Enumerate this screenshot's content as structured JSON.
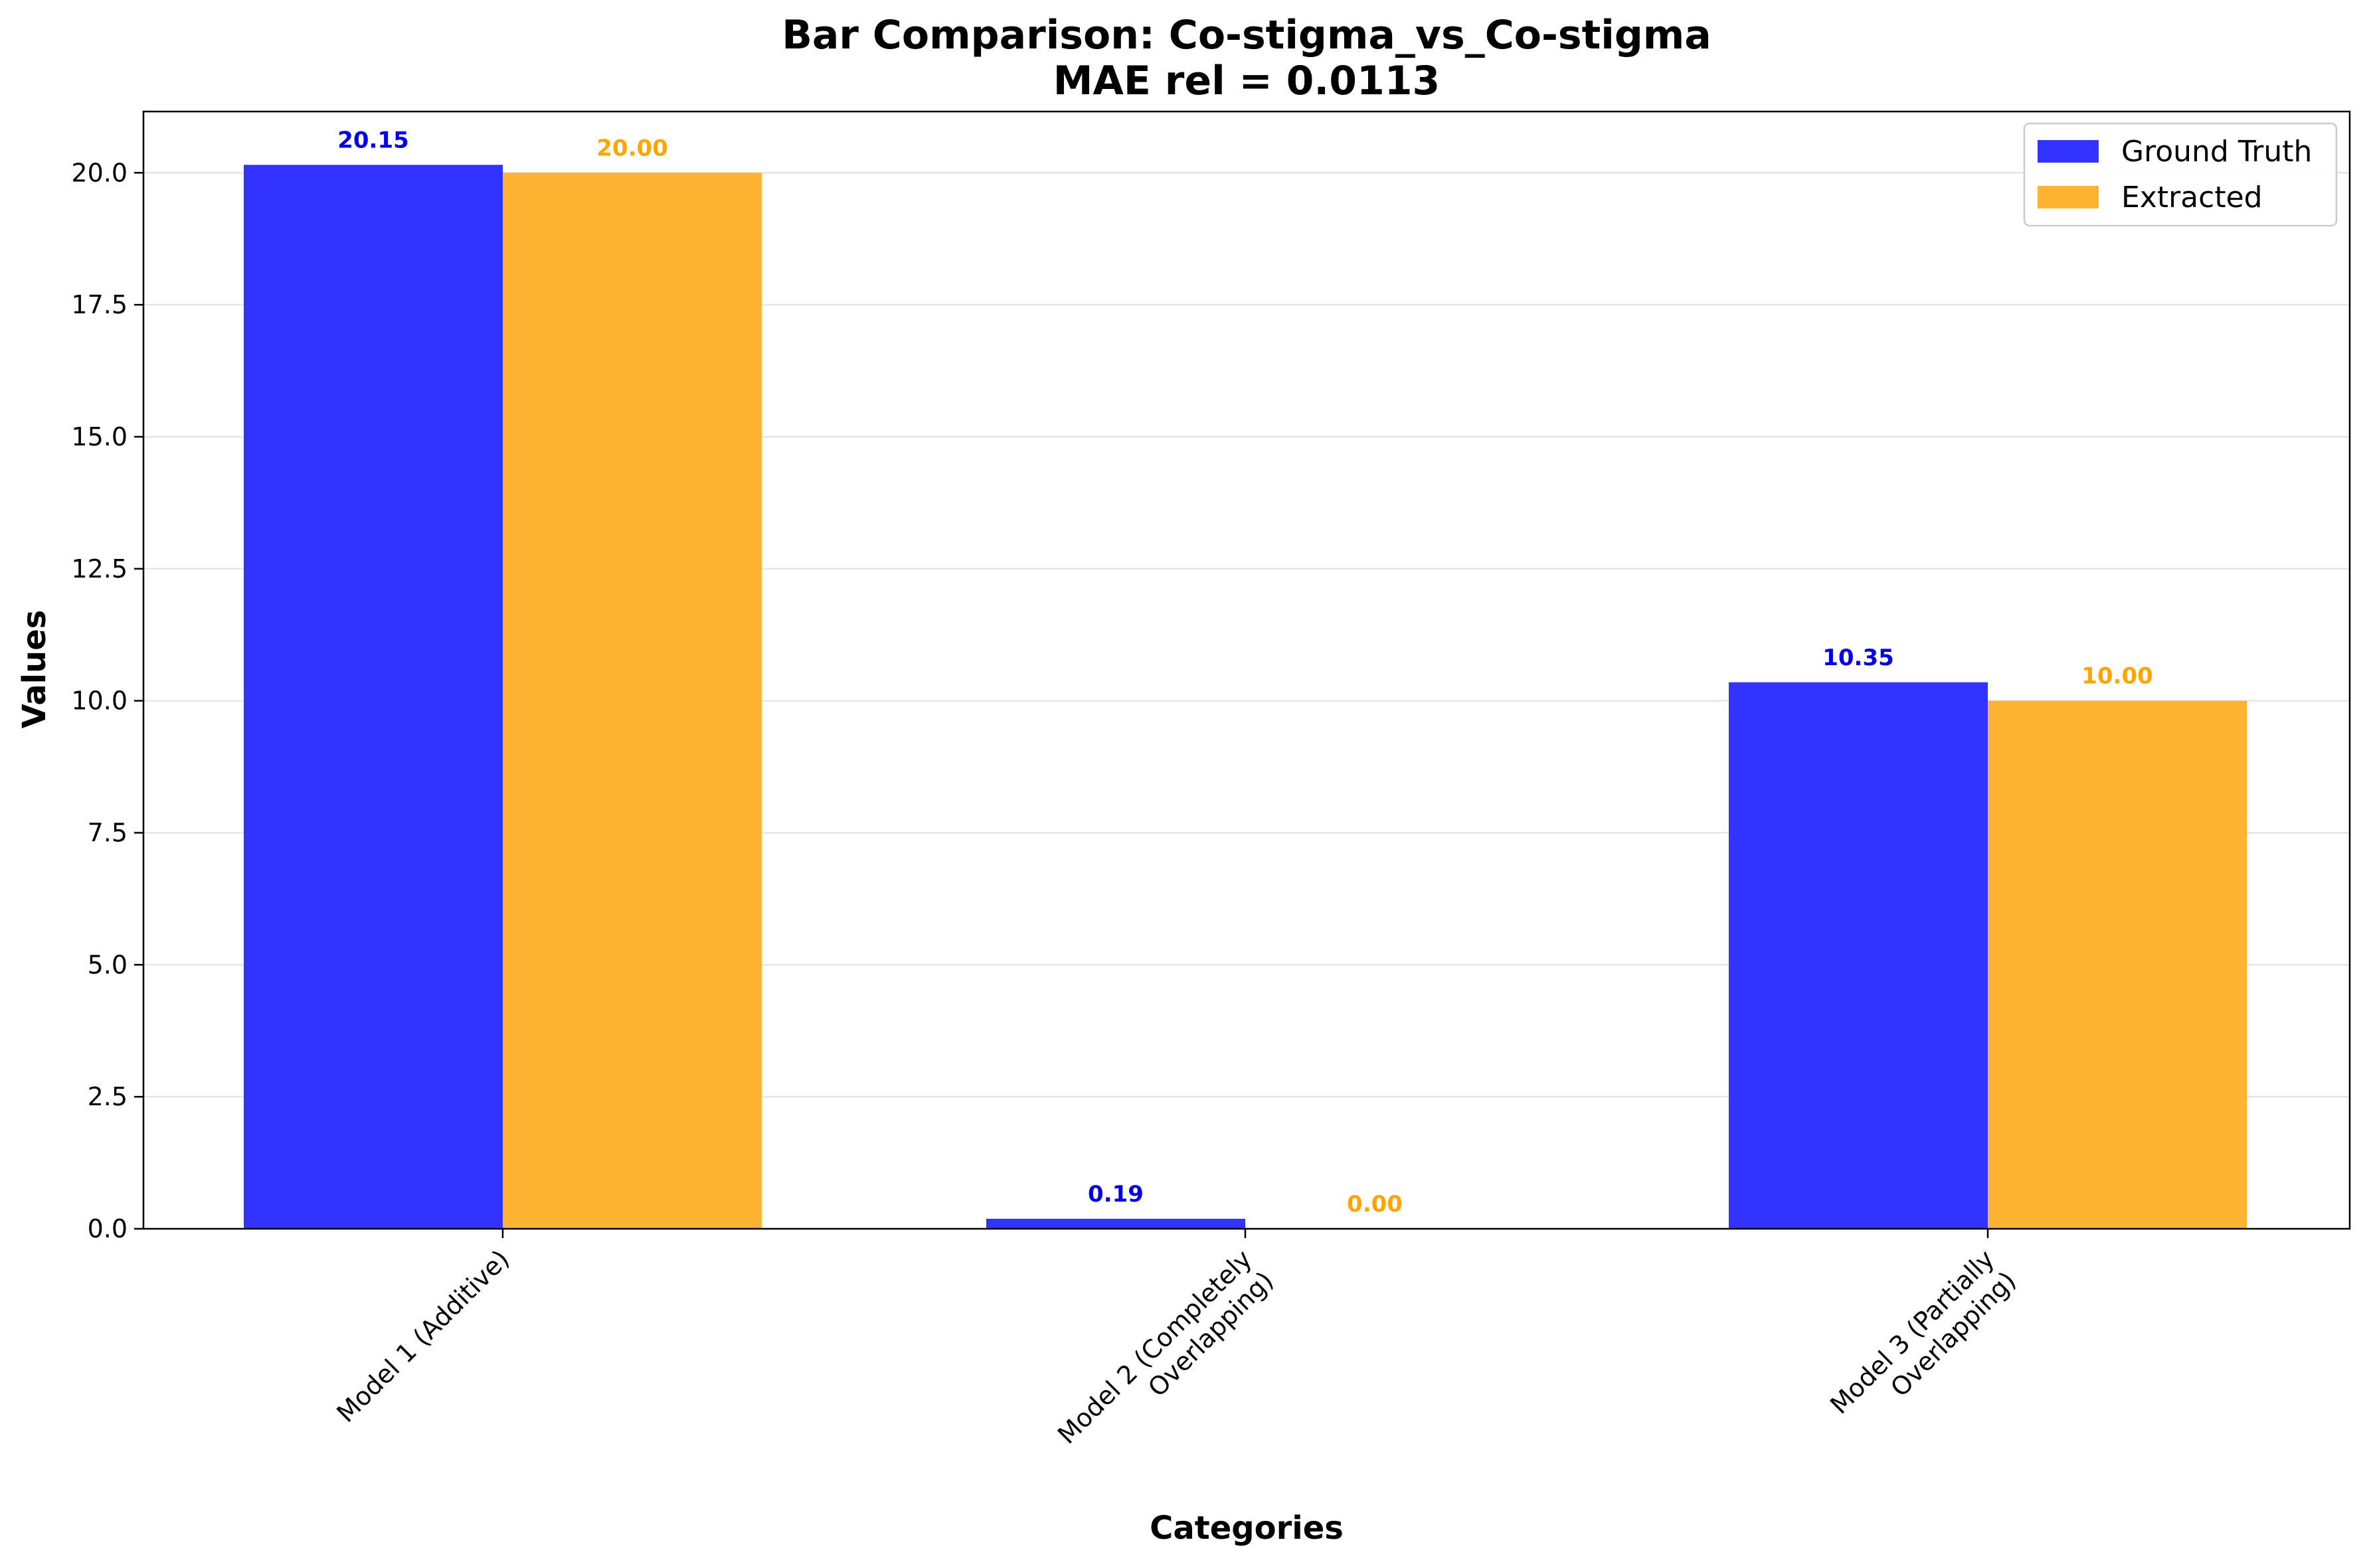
{
  "chart_data": {
    "type": "bar",
    "title": "Bar Comparison: Co-stigma_vs_Co-stigma",
    "subtitle": "MAE rel = 0.0113",
    "xlabel": "Categories",
    "ylabel": "Values",
    "categories": [
      [
        "Model 1 (Additive)"
      ],
      [
        "Model  2  (Completely",
        "Overlapping)"
      ],
      [
        "Model 3 (Partially",
        "Overlapping)"
      ]
    ],
    "series": [
      {
        "name": "Ground Truth",
        "color": "#3333ff",
        "label_color": "#0000ee",
        "values": [
          20.15,
          0.19,
          10.35
        ],
        "value_labels": [
          "20.15",
          "0.19",
          "10.35"
        ]
      },
      {
        "name": "Extracted",
        "color": "#ffb333",
        "label_color": "#ffa500",
        "values": [
          20.0,
          0.0,
          10.0
        ],
        "value_labels": [
          "20.00",
          "0.00",
          "10.00"
        ]
      }
    ],
    "ylim": [
      0,
      21.16
    ],
    "yticks": [
      "0.0",
      "2.5",
      "5.0",
      "7.5",
      "10.0",
      "12.5",
      "15.0",
      "17.5",
      "20.0"
    ],
    "grid": true,
    "legend_position": "top-right"
  }
}
